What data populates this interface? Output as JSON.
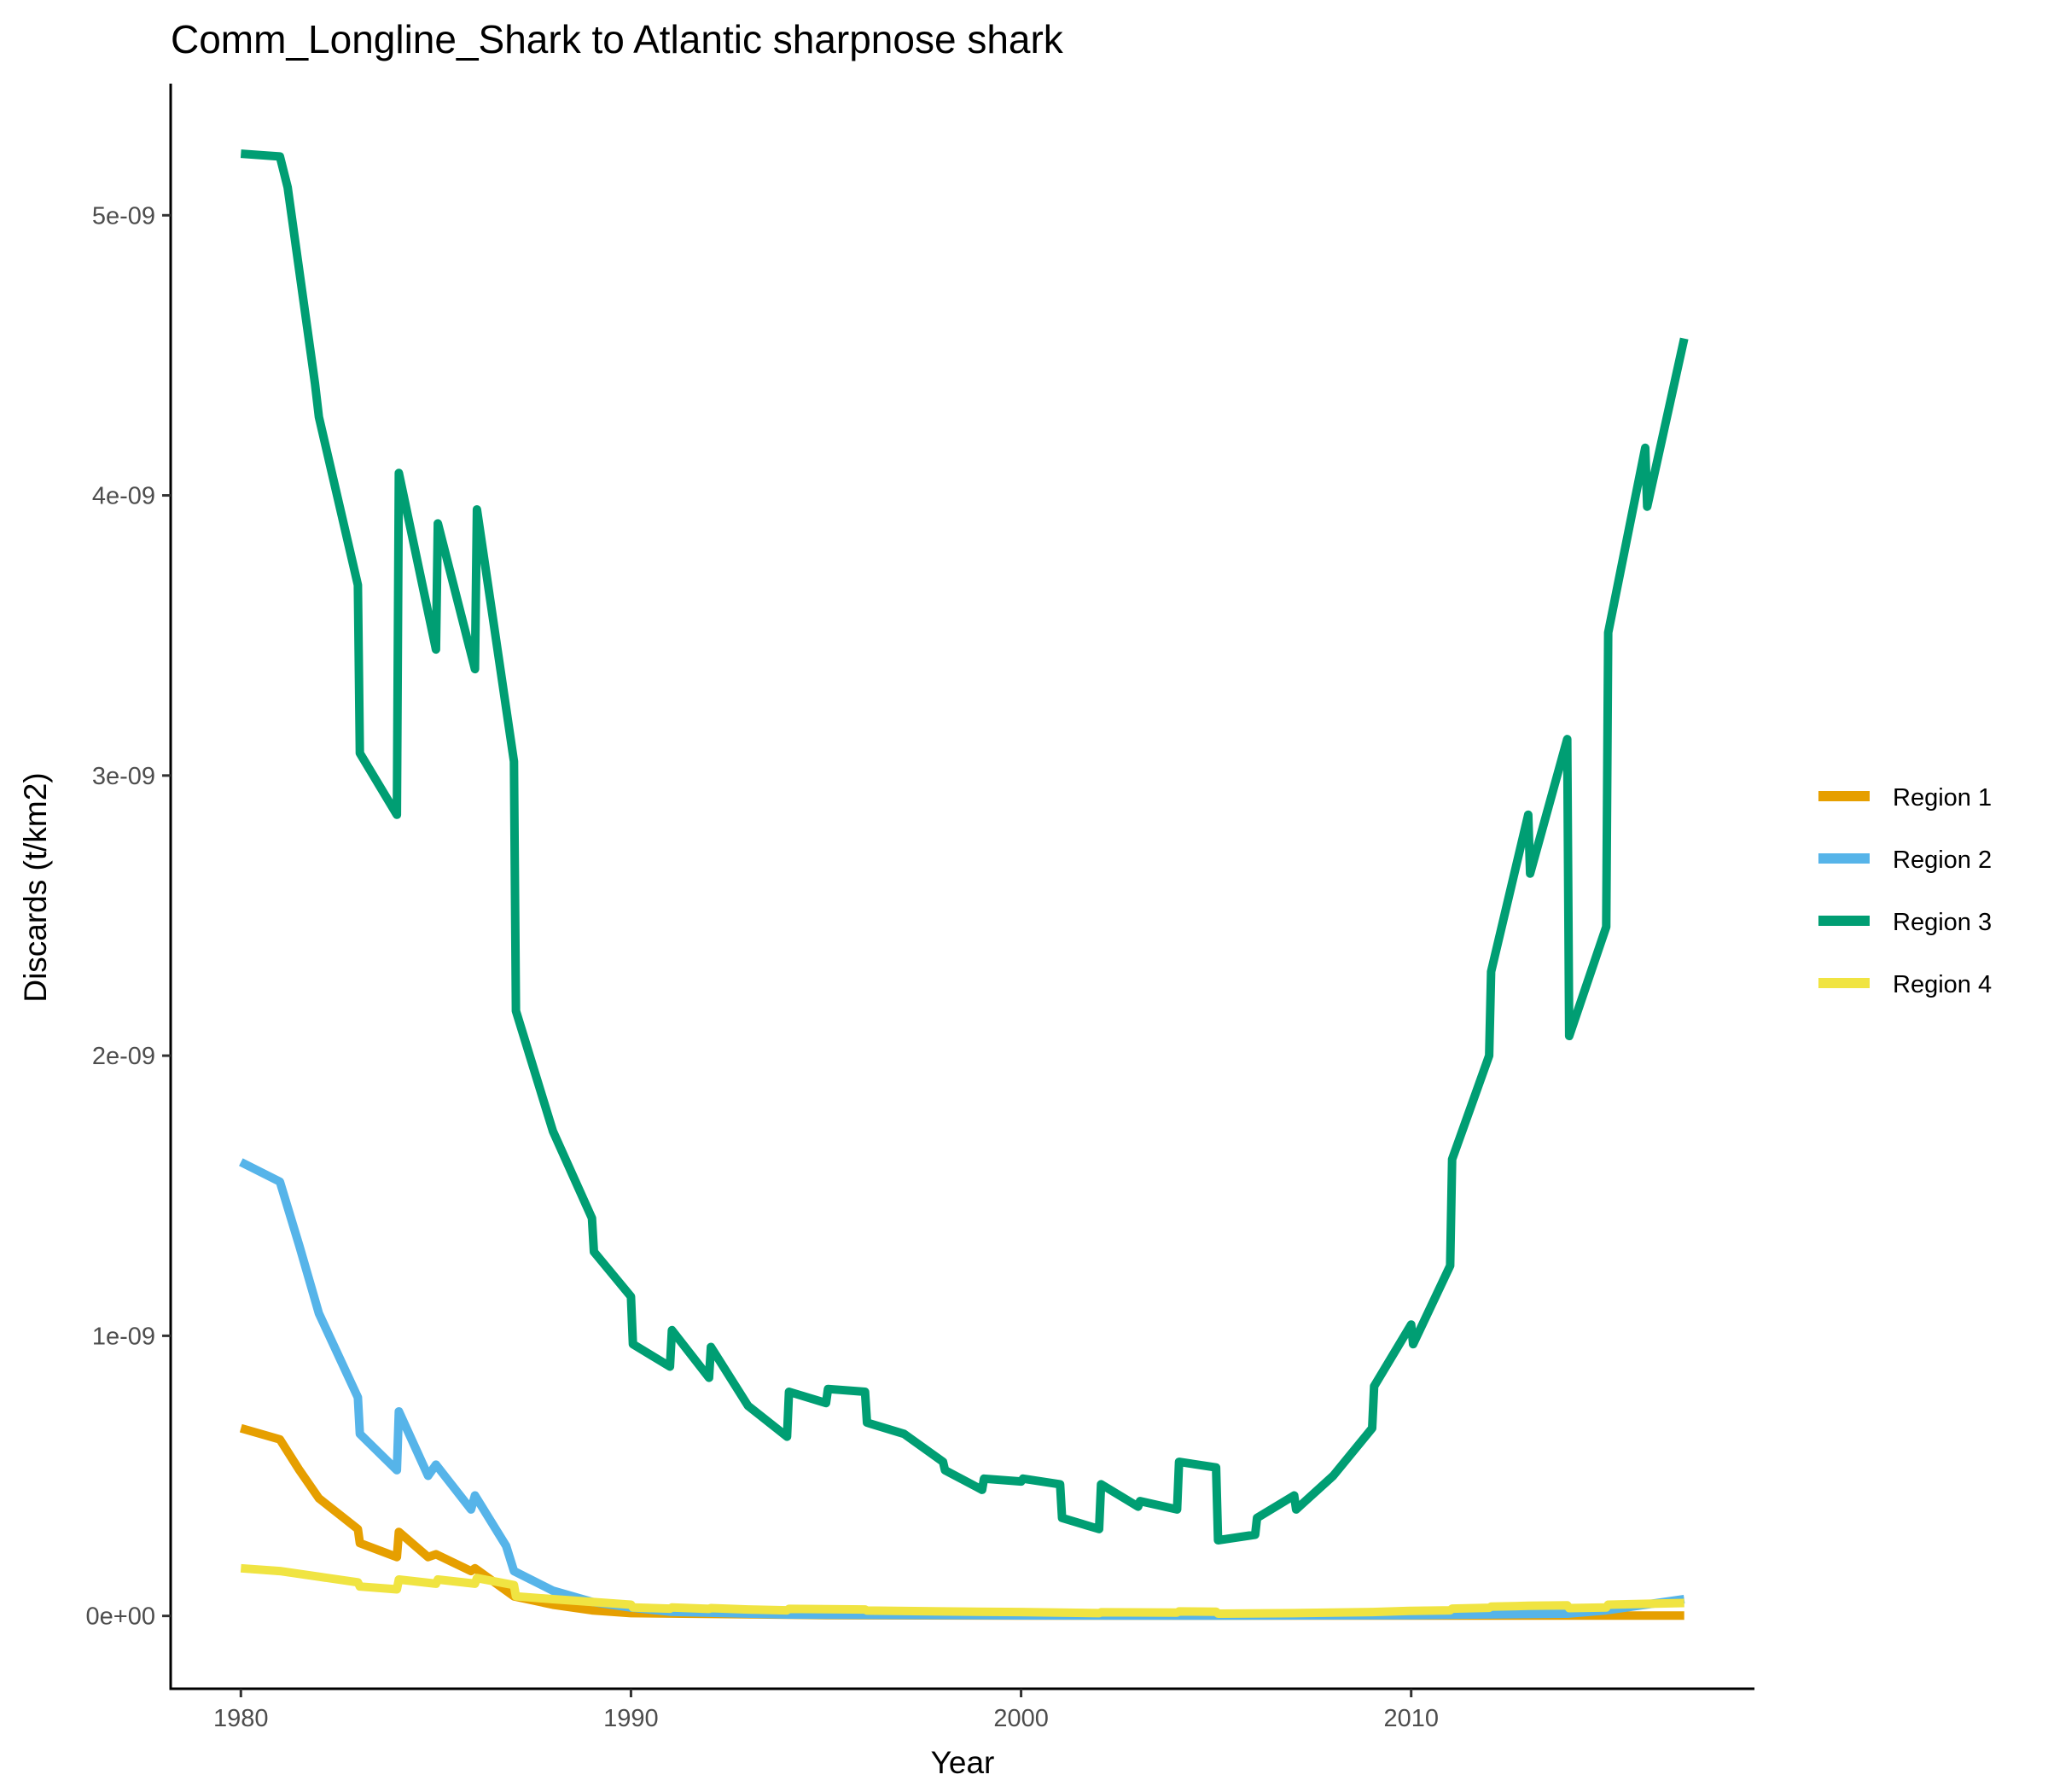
{
  "chart_data": {
    "type": "line",
    "title": "Comm_Longline_Shark to Atlantic sharpnose shark",
    "xlabel": "Year",
    "ylabel": "Discards (t/km2)",
    "xlim": [
      1978.2,
      2018.8
    ],
    "ylim": [
      -2.6e-10,
      5.47e-09
    ],
    "xticks": [
      {
        "value": 1980,
        "label": "1980"
      },
      {
        "value": 1990,
        "label": "1990"
      },
      {
        "value": 2000,
        "label": "2000"
      },
      {
        "value": 2010,
        "label": "2010"
      }
    ],
    "yticks": [
      {
        "value": 0,
        "label": "0e+00"
      },
      {
        "value": 1e-09,
        "label": "1e-09"
      },
      {
        "value": 2e-09,
        "label": "2e-09"
      },
      {
        "value": 3e-09,
        "label": "3e-09"
      },
      {
        "value": 4e-09,
        "label": "4e-09"
      },
      {
        "value": 5e-09,
        "label": "5e-09"
      }
    ],
    "grid": false,
    "legend_position": "right",
    "series": [
      {
        "name": "Region 1",
        "color": "#E69F00",
        "points": [
          [
            1980,
            6.7e-10
          ],
          [
            1981,
            6.3e-10
          ],
          [
            1981.5,
            5.2e-10
          ],
          [
            1982,
            4.2e-10
          ],
          [
            1983,
            3.1e-10
          ],
          [
            1983.05,
            2.6e-10
          ],
          [
            1984,
            2.1e-10
          ],
          [
            1984.05,
            3e-10
          ],
          [
            1984.8,
            2.1e-10
          ],
          [
            1985,
            2.2e-10
          ],
          [
            1985.9,
            1.6e-10
          ],
          [
            1986,
            1.7e-10
          ],
          [
            1987,
            7e-11
          ],
          [
            1988,
            4e-11
          ],
          [
            1989,
            2e-11
          ],
          [
            1990,
            1e-11
          ],
          [
            1995,
            3e-12
          ],
          [
            2000,
            1e-12
          ],
          [
            2010,
            1e-12
          ],
          [
            2017,
            1e-12
          ]
        ]
      },
      {
        "name": "Region 2",
        "color": "#56B4E9",
        "points": [
          [
            1980,
            1.62e-09
          ],
          [
            1981,
            1.55e-09
          ],
          [
            1981.5,
            1.32e-09
          ],
          [
            1982,
            1.08e-09
          ],
          [
            1983,
            7.8e-10
          ],
          [
            1983.05,
            6.5e-10
          ],
          [
            1984,
            5.2e-10
          ],
          [
            1984.05,
            7.3e-10
          ],
          [
            1984.8,
            5e-10
          ],
          [
            1985,
            5.4e-10
          ],
          [
            1985.9,
            3.8e-10
          ],
          [
            1986,
            4.3e-10
          ],
          [
            1986.8,
            2.5e-10
          ],
          [
            1987,
            1.6e-10
          ],
          [
            1988,
            9e-11
          ],
          [
            1989,
            5e-11
          ],
          [
            1990,
            3e-11
          ],
          [
            1991,
            1.5e-11
          ],
          [
            1994,
            5e-12
          ],
          [
            2000,
            2e-12
          ],
          [
            2005,
            1e-12
          ],
          [
            2010,
            3e-12
          ],
          [
            2014,
            8e-12
          ],
          [
            2015,
            2e-11
          ],
          [
            2017,
            6e-11
          ]
        ]
      },
      {
        "name": "Region 3",
        "color": "#009E73",
        "points": [
          [
            1980,
            5.22e-09
          ],
          [
            1981,
            5.21e-09
          ],
          [
            1981.2,
            5.1e-09
          ],
          [
            1981.9,
            4.4e-09
          ],
          [
            1982,
            4.28e-09
          ],
          [
            1983,
            3.68e-09
          ],
          [
            1983.05,
            3.08e-09
          ],
          [
            1984,
            2.86e-09
          ],
          [
            1984.05,
            4.08e-09
          ],
          [
            1985,
            3.45e-09
          ],
          [
            1985.05,
            3.9e-09
          ],
          [
            1986,
            3.38e-09
          ],
          [
            1986.05,
            3.95e-09
          ],
          [
            1987,
            3.05e-09
          ],
          [
            1987.05,
            2.16e-09
          ],
          [
            1988,
            1.73e-09
          ],
          [
            1989,
            1.42e-09
          ],
          [
            1989.05,
            1.3e-09
          ],
          [
            1990,
            1.14e-09
          ],
          [
            1990.05,
            9.7e-10
          ],
          [
            1991,
            8.9e-10
          ],
          [
            1991.05,
            1.02e-09
          ],
          [
            1992,
            8.5e-10
          ],
          [
            1992.05,
            9.6e-10
          ],
          [
            1993,
            7.5e-10
          ],
          [
            1994,
            6.4e-10
          ],
          [
            1994.05,
            8e-10
          ],
          [
            1995,
            7.6e-10
          ],
          [
            1995.05,
            8.1e-10
          ],
          [
            1996,
            8e-10
          ],
          [
            1996.05,
            6.9e-10
          ],
          [
            1997,
            6.5e-10
          ],
          [
            1998,
            5.5e-10
          ],
          [
            1998.05,
            5.2e-10
          ],
          [
            1999,
            4.5e-10
          ],
          [
            1999.05,
            4.9e-10
          ],
          [
            2000,
            4.8e-10
          ],
          [
            2000.05,
            4.9e-10
          ],
          [
            2001,
            4.7e-10
          ],
          [
            2001.05,
            3.5e-10
          ],
          [
            2002,
            3.1e-10
          ],
          [
            2002.05,
            4.7e-10
          ],
          [
            2003,
            3.9e-10
          ],
          [
            2003.05,
            4.1e-10
          ],
          [
            2004,
            3.8e-10
          ],
          [
            2004.05,
            5.5e-10
          ],
          [
            2005,
            5.3e-10
          ],
          [
            2005.05,
            2.7e-10
          ],
          [
            2006,
            2.9e-10
          ],
          [
            2006.05,
            3.5e-10
          ],
          [
            2007,
            4.3e-10
          ],
          [
            2007.05,
            3.8e-10
          ],
          [
            2008,
            5e-10
          ],
          [
            2009,
            6.7e-10
          ],
          [
            2009.05,
            8.2e-10
          ],
          [
            2010,
            1.04e-09
          ],
          [
            2010.05,
            9.7e-10
          ],
          [
            2011,
            1.25e-09
          ],
          [
            2011.05,
            1.63e-09
          ],
          [
            2012,
            2e-09
          ],
          [
            2012.05,
            2.3e-09
          ],
          [
            2013,
            2.86e-09
          ],
          [
            2013.05,
            2.65e-09
          ],
          [
            2014,
            3.13e-09
          ],
          [
            2014.05,
            2.07e-09
          ],
          [
            2015,
            2.46e-09
          ],
          [
            2015.05,
            3.51e-09
          ],
          [
            2016,
            4.17e-09
          ],
          [
            2016.05,
            3.96e-09
          ],
          [
            2017,
            4.56e-09
          ]
        ]
      },
      {
        "name": "Region 4",
        "color": "#F0E442",
        "points": [
          [
            1980,
            1.7e-10
          ],
          [
            1981,
            1.6e-10
          ],
          [
            1982,
            1.4e-10
          ],
          [
            1983,
            1.2e-10
          ],
          [
            1983.05,
            1.05e-10
          ],
          [
            1984,
            9.5e-11
          ],
          [
            1984.05,
            1.3e-10
          ],
          [
            1985,
            1.15e-10
          ],
          [
            1985.05,
            1.3e-10
          ],
          [
            1986,
            1.15e-10
          ],
          [
            1986.05,
            1.35e-10
          ],
          [
            1987,
            1.1e-10
          ],
          [
            1987.05,
            7e-11
          ],
          [
            1988,
            6e-11
          ],
          [
            1989,
            5e-11
          ],
          [
            1990,
            4e-11
          ],
          [
            1990.05,
            3e-11
          ],
          [
            1991,
            2.6e-11
          ],
          [
            1991.05,
            3e-11
          ],
          [
            1992,
            2.5e-11
          ],
          [
            1992.05,
            2.8e-11
          ],
          [
            1993,
            2.3e-11
          ],
          [
            1994,
            2e-11
          ],
          [
            1994.05,
            2.5e-11
          ],
          [
            1996,
            2.3e-11
          ],
          [
            1996.05,
            1.9e-11
          ],
          [
            1998,
            1.6e-11
          ],
          [
            2000,
            1.4e-11
          ],
          [
            2001,
            1.2e-11
          ],
          [
            2002,
            1e-11
          ],
          [
            2002.05,
            1.3e-11
          ],
          [
            2004,
            1.2e-11
          ],
          [
            2004.05,
            1.6e-11
          ],
          [
            2005,
            1.5e-11
          ],
          [
            2005.05,
            8e-12
          ],
          [
            2007,
            1e-11
          ],
          [
            2009,
            1.4e-11
          ],
          [
            2010,
            1.8e-11
          ],
          [
            2011,
            2e-11
          ],
          [
            2011.05,
            2.6e-11
          ],
          [
            2012,
            2.9e-11
          ],
          [
            2012.05,
            3.3e-11
          ],
          [
            2013,
            3.6e-11
          ],
          [
            2014,
            3.8e-11
          ],
          [
            2014.05,
            2.8e-11
          ],
          [
            2015,
            3e-11
          ],
          [
            2015.05,
            4e-11
          ],
          [
            2016,
            4.3e-11
          ],
          [
            2017,
            4.6e-11
          ]
        ]
      }
    ]
  }
}
